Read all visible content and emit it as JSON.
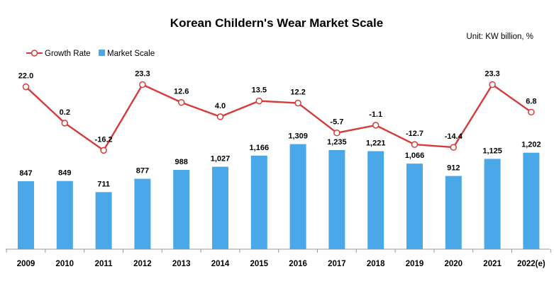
{
  "chart_data": {
    "type": "bar",
    "title": "Korean Childern's Wear Market Scale",
    "unit": "Unit: KW billion, %",
    "categories": [
      "2009",
      "2010",
      "2011",
      "2012",
      "2013",
      "2014",
      "2015",
      "2016",
      "2017",
      "2018",
      "2019",
      "2020",
      "2021",
      "2022(e)"
    ],
    "series": [
      {
        "name": "Market Scale",
        "type": "bar",
        "color": "#4aa8e8",
        "values": [
          847,
          849,
          711,
          877,
          988,
          1027,
          1166,
          1309,
          1235,
          1221,
          1066,
          912,
          1125,
          1202
        ],
        "labels": [
          "847",
          "849",
          "711",
          "877",
          "988",
          "1,027",
          "1,166",
          "1,309",
          "1,235",
          "1,221",
          "1,066",
          "912",
          "1,125",
          "1,202"
        ]
      },
      {
        "name": "Growth Rate",
        "type": "line",
        "color": "#d63b3b",
        "values": [
          22.0,
          0.2,
          -16.2,
          23.3,
          12.6,
          4.0,
          13.5,
          12.2,
          -5.7,
          -1.1,
          -12.7,
          -14.4,
          23.3,
          6.8
        ],
        "labels": [
          "22.0",
          "0.2",
          "-16.2",
          "23.3",
          "12.6",
          "4.0",
          "13.5",
          "12.2",
          "-5.7",
          "-1.1",
          "-12.7",
          "-14.4",
          "23.3",
          "6.8"
        ]
      }
    ],
    "legend": [
      "Growth Rate",
      "Market Scale"
    ],
    "legend_position": "top-left",
    "bar_ylim": [
      0,
      1400
    ],
    "rate_ylim": [
      -20,
      30
    ],
    "grid": false
  }
}
